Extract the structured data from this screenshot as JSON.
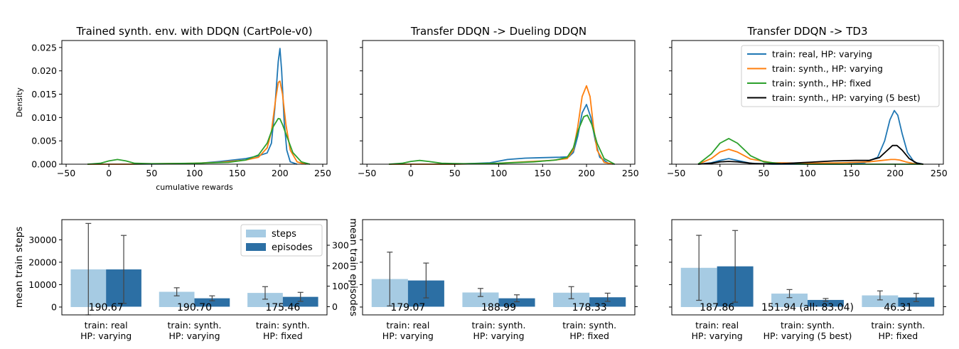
{
  "colors": {
    "real": "#1f77b4",
    "synth_varying": "#ff7f0e",
    "synth_fixed": "#2ca02c",
    "synth_best": "#000000",
    "steps_bar": "#a6cbe3",
    "episodes_bar": "#2c6fa4",
    "error": "#444444"
  },
  "chart_data": [
    {
      "type": "line",
      "title": "Trained synth. env. with DDQN (CartPole-v0)",
      "xlabel": "cumulative rewards",
      "ylabel": "Density",
      "xlim": [
        -55,
        255
      ],
      "ylim": [
        0,
        0.0265
      ],
      "xticks": [
        "−50",
        "0",
        "50",
        "100",
        "150",
        "200",
        "250"
      ],
      "xtick_values": [
        -50,
        0,
        50,
        100,
        150,
        200,
        250
      ],
      "yticks": [
        "0.000",
        "0.005",
        "0.010",
        "0.015",
        "0.020",
        "0.025"
      ],
      "ytick_values": [
        0,
        0.005,
        0.01,
        0.015,
        0.02,
        0.025
      ],
      "series": [
        {
          "key": "real",
          "color_key": "real",
          "x": [
            -25,
            0,
            20,
            100,
            130,
            160,
            175,
            185,
            190,
            194,
            198,
            200,
            202,
            205,
            208,
            212,
            220
          ],
          "y": [
            0,
            0,
            0,
            0.0001,
            0.0006,
            0.0012,
            0.0018,
            0.0024,
            0.0045,
            0.012,
            0.022,
            0.0248,
            0.02,
            0.009,
            0.003,
            0.0005,
            0
          ]
        },
        {
          "key": "synth_varying",
          "color_key": "synth_varying",
          "x": [
            -25,
            0,
            20,
            100,
            130,
            160,
            175,
            185,
            190,
            195,
            198,
            200,
            203,
            207,
            212,
            220,
            230
          ],
          "y": [
            0,
            0,
            0,
            0.0002,
            0.0004,
            0.0009,
            0.0015,
            0.0035,
            0.007,
            0.014,
            0.0175,
            0.0178,
            0.015,
            0.0085,
            0.003,
            0.0005,
            0
          ]
        },
        {
          "key": "synth_fixed",
          "color_key": "synth_fixed",
          "x": [
            -25,
            -10,
            0,
            10,
            20,
            30,
            50,
            100,
            140,
            160,
            175,
            185,
            192,
            198,
            200,
            203,
            208,
            215,
            225,
            235
          ],
          "y": [
            0,
            0.0002,
            0.0007,
            0.001,
            0.0007,
            0.0002,
            0.0001,
            0.0002,
            0.0004,
            0.0009,
            0.002,
            0.0045,
            0.008,
            0.0098,
            0.0097,
            0.0085,
            0.006,
            0.0025,
            0.0005,
            0
          ]
        }
      ]
    },
    {
      "type": "line",
      "title": "Transfer DDQN -> Dueling DDQN",
      "xlim": [
        -55,
        255
      ],
      "ylim": [
        0,
        0.0265
      ],
      "xticks": [
        "−50",
        "0",
        "50",
        "100",
        "150",
        "200",
        "250"
      ],
      "xtick_values": [
        -50,
        0,
        50,
        100,
        150,
        200,
        250
      ],
      "series": [
        {
          "key": "real",
          "color_key": "real",
          "x": [
            -25,
            0,
            50,
            90,
            110,
            130,
            150,
            170,
            180,
            185,
            190,
            195,
            200,
            205,
            210,
            215,
            225,
            232
          ],
          "y": [
            0,
            0,
            0,
            0.0003,
            0.001,
            0.0013,
            0.0014,
            0.0015,
            0.0016,
            0.0025,
            0.006,
            0.011,
            0.0128,
            0.01,
            0.005,
            0.0015,
            0.0002,
            0
          ]
        },
        {
          "key": "synth_varying",
          "color_key": "synth_varying",
          "x": [
            -25,
            0,
            50,
            100,
            130,
            160,
            178,
            185,
            190,
            195,
            200,
            204,
            208,
            212,
            220,
            230
          ],
          "y": [
            0,
            0,
            0,
            0.0002,
            0.0005,
            0.0008,
            0.0012,
            0.003,
            0.008,
            0.0145,
            0.0168,
            0.0145,
            0.008,
            0.003,
            0.0004,
            0
          ]
        },
        {
          "key": "synth_fixed",
          "color_key": "synth_fixed",
          "x": [
            -25,
            -10,
            0,
            10,
            20,
            35,
            60,
            100,
            140,
            165,
            178,
            185,
            191,
            197,
            201,
            206,
            212,
            220,
            232
          ],
          "y": [
            0,
            0.0002,
            0.0006,
            0.0008,
            0.0006,
            0.0002,
            0.0001,
            0.0002,
            0.0005,
            0.0009,
            0.0015,
            0.0035,
            0.0075,
            0.0102,
            0.0105,
            0.0085,
            0.0045,
            0.0012,
            0
          ]
        }
      ]
    },
    {
      "type": "line",
      "title": "Transfer DDQN -> TD3",
      "xlim": [
        -55,
        255
      ],
      "ylim": [
        0,
        0.0265
      ],
      "xticks": [
        "−50",
        "0",
        "50",
        "100",
        "150",
        "200",
        "250"
      ],
      "xtick_values": [
        -50,
        0,
        50,
        100,
        150,
        200,
        250
      ],
      "legend": {
        "placement": "upper-right",
        "entries": [
          {
            "label": "train: real, HP: varying",
            "color_key": "real"
          },
          {
            "label": "train: synth., HP: varying",
            "color_key": "synth_varying"
          },
          {
            "label": "train: synth., HP: fixed",
            "color_key": "synth_fixed"
          },
          {
            "label": "train: synth., HP: varying (5 best)",
            "color_key": "synth_best"
          }
        ]
      },
      "series": [
        {
          "key": "real",
          "color_key": "real",
          "x": [
            -25,
            -10,
            0,
            10,
            20,
            35,
            60,
            100,
            140,
            165,
            180,
            188,
            194,
            199,
            203,
            208,
            214,
            222,
            232
          ],
          "y": [
            0,
            0.0003,
            0.0008,
            0.0012,
            0.0008,
            0.0002,
            0,
            0,
            0,
            0.0003,
            0.0015,
            0.005,
            0.0095,
            0.0115,
            0.0105,
            0.0065,
            0.0025,
            0.0004,
            0
          ]
        },
        {
          "key": "synth_varying",
          "color_key": "synth_varying",
          "x": [
            -25,
            -10,
            0,
            10,
            20,
            35,
            60,
            100,
            140,
            170,
            185,
            195,
            200,
            205,
            212,
            222,
            232
          ],
          "y": [
            0,
            0.0012,
            0.0026,
            0.0032,
            0.0026,
            0.0011,
            0.0003,
            0.0002,
            0.0003,
            0.0005,
            0.0008,
            0.001,
            0.001,
            0.0009,
            0.0005,
            0.0001,
            0
          ]
        },
        {
          "key": "synth_fixed",
          "color_key": "synth_fixed",
          "x": [
            -25,
            -10,
            0,
            10,
            20,
            35,
            50,
            70,
            100,
            140,
            170,
            185,
            195,
            200,
            210,
            222,
            232
          ],
          "y": [
            0,
            0.0022,
            0.0045,
            0.0055,
            0.0045,
            0.0018,
            0.0005,
            0.0001,
            0,
            0,
            0,
            0,
            0,
            0,
            0,
            0,
            0
          ]
        },
        {
          "key": "synth_best",
          "color_key": "synth_best",
          "x": [
            -25,
            -10,
            0,
            10,
            20,
            40,
            70,
            100,
            130,
            155,
            170,
            182,
            190,
            197,
            202,
            208,
            216,
            225,
            232
          ],
          "y": [
            0,
            0.0002,
            0.0005,
            0.0006,
            0.0005,
            0.0001,
            0.0001,
            0.0004,
            0.0007,
            0.0008,
            0.0008,
            0.0014,
            0.0028,
            0.004,
            0.004,
            0.003,
            0.0012,
            0.0002,
            0
          ]
        }
      ]
    },
    {
      "type": "bar",
      "categories": [
        "train: real\nHP: varying",
        "train: synth.\nHP: varying",
        "train: synth.\nHP: fixed"
      ],
      "value_labels": [
        "190.67",
        "190.70",
        "175.46"
      ],
      "ylabel": "mean train steps",
      "ylabel_right": "mean train episodes",
      "ylim": [
        -3500,
        39000
      ],
      "yticks": [
        "0",
        "10000",
        "20000",
        "30000"
      ],
      "ytick_values": [
        0,
        10000,
        20000,
        30000
      ],
      "ylim_right": [
        -40,
        425
      ],
      "yticks_right": [
        "0",
        "100",
        "200",
        "300"
      ],
      "ytick_values_right": [
        0,
        100,
        200,
        300
      ],
      "legend": {
        "placement": "upper-right",
        "entries": [
          {
            "label": "steps",
            "color_key": "steps_bar"
          },
          {
            "label": "episodes",
            "color_key": "episodes_bar"
          }
        ]
      },
      "series": [
        {
          "name": "steps",
          "values": [
            16800,
            6800,
            6300
          ],
          "err": [
            20500,
            1800,
            2800
          ]
        },
        {
          "name": "episodes",
          "values": [
            182,
            41,
            48
          ],
          "err": [
            166,
            12,
            22
          ]
        }
      ]
    },
    {
      "type": "bar",
      "categories": [
        "train: real\nHP: varying",
        "train: synth.\nHP: varying",
        "train: synth.\nHP: fixed"
      ],
      "value_labels": [
        "179.07",
        "188.99",
        "178.33"
      ],
      "ylim": [
        -3500,
        39000
      ],
      "ylim_right": [
        -40,
        425
      ],
      "series": [
        {
          "name": "steps",
          "values": [
            12500,
            6500,
            6400
          ],
          "err": [
            12000,
            1800,
            2700
          ]
        },
        {
          "name": "episodes",
          "values": [
            128,
            41,
            46
          ],
          "err": [
            85,
            17,
            20
          ]
        }
      ]
    },
    {
      "type": "bar",
      "categories": [
        "train: real\nHP: varying",
        "train: synth.\nHP: varying (5 best)",
        "train: synth.\nHP: fixed"
      ],
      "value_labels": [
        "187.86",
        "151.94 (all: 83.04)",
        "46.31"
      ],
      "ylim": [
        -3500,
        39000
      ],
      "ylim_right": [
        -40,
        425
      ],
      "series": [
        {
          "name": "steps",
          "values": [
            17500,
            6000,
            5200
          ],
          "err": [
            14500,
            1800,
            2000
          ]
        },
        {
          "name": "episodes",
          "values": [
            197,
            33,
            45
          ],
          "err": [
            175,
            7,
            20
          ]
        }
      ]
    }
  ]
}
